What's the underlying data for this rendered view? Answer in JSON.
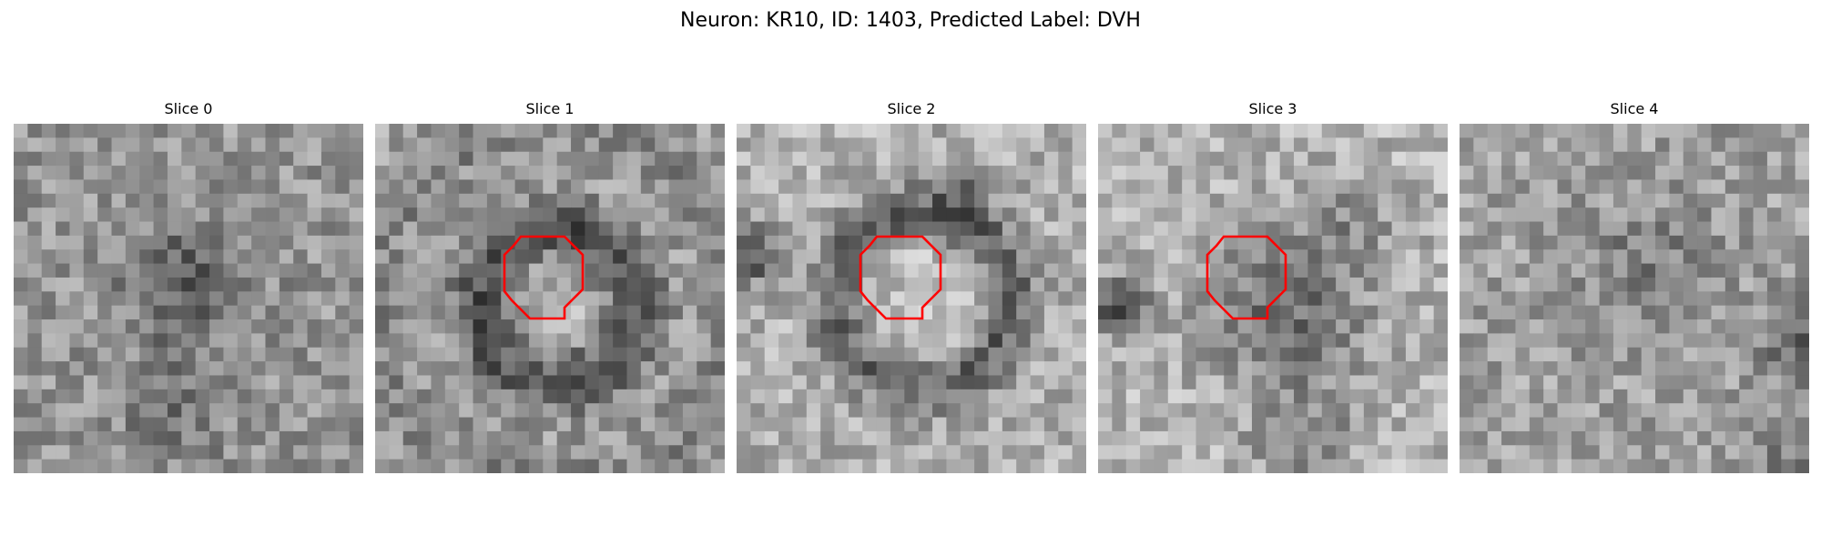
{
  "figure": {
    "title": "Neuron: KR10, ID: 1403, Predicted Label: DVH"
  },
  "panels": [
    {
      "title": "Slice 0",
      "has_contour": false
    },
    {
      "title": "Slice 1",
      "has_contour": true
    },
    {
      "title": "Slice 2",
      "has_contour": true
    },
    {
      "title": "Slice 3",
      "has_contour": true
    },
    {
      "title": "Slice 4",
      "has_contour": false
    }
  ],
  "colors": {
    "contour": "#ff0000",
    "colormap": "grayscale"
  }
}
